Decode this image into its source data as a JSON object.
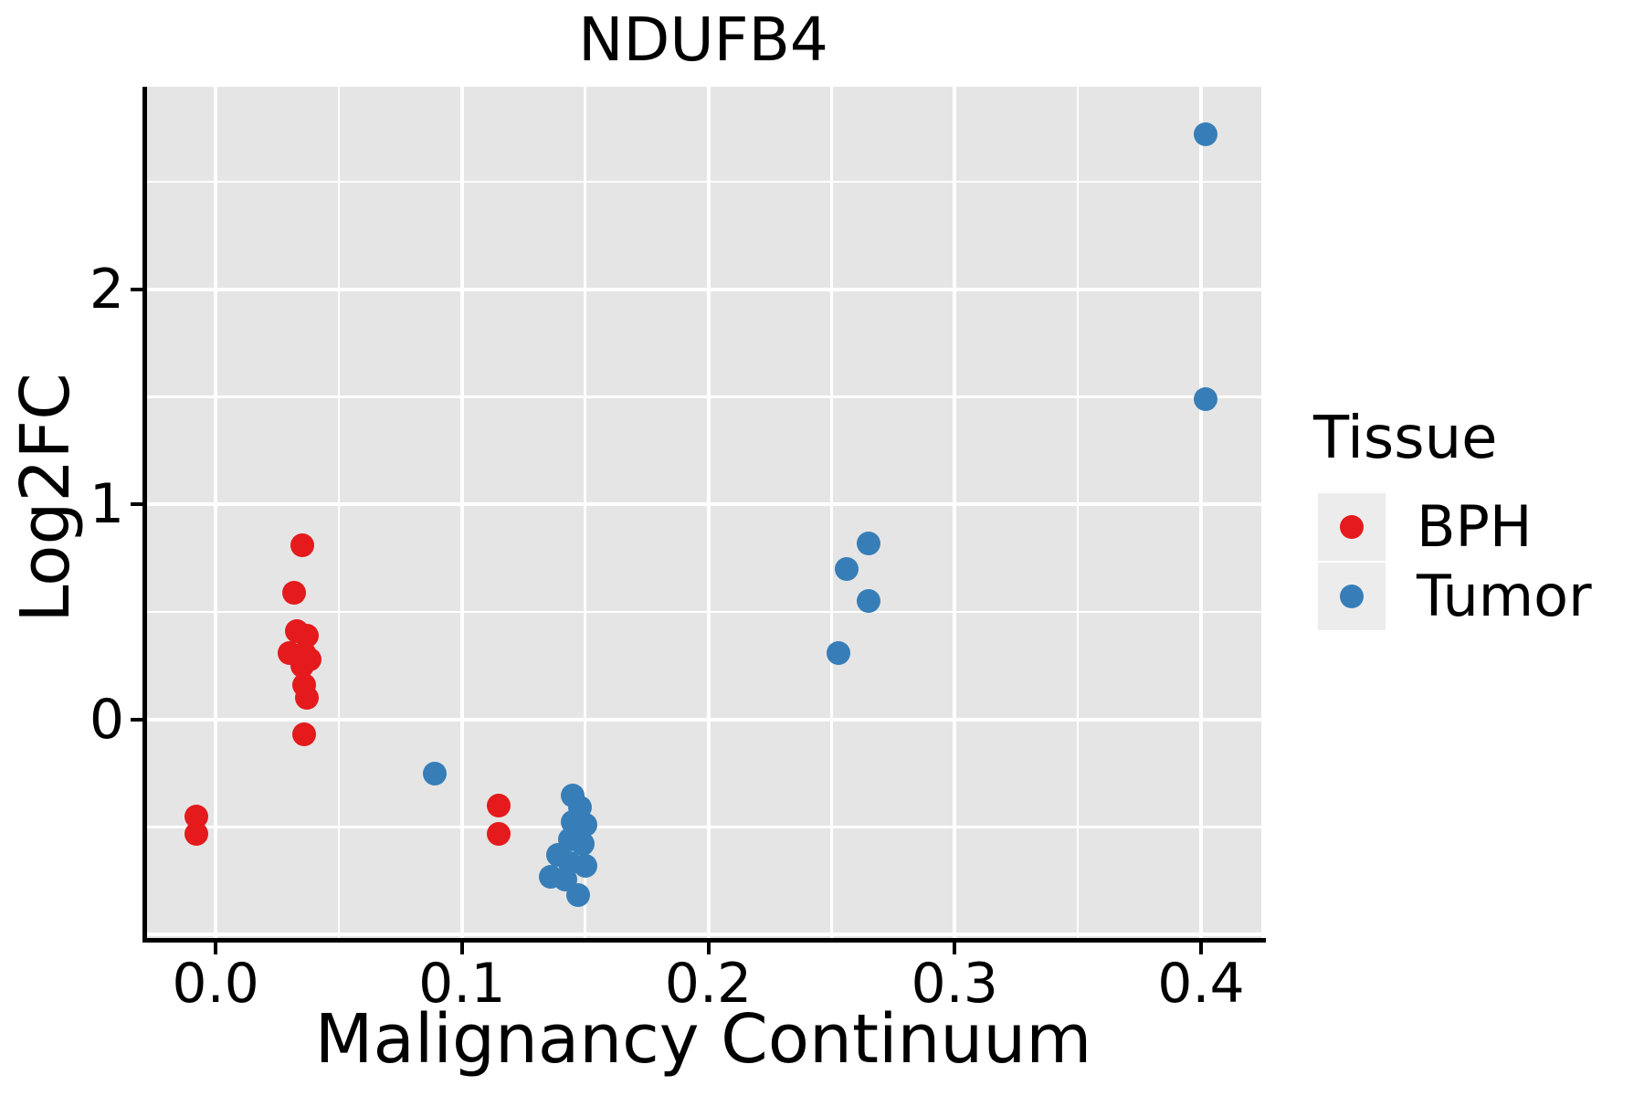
{
  "chart_data": {
    "type": "scatter",
    "title": "NDUFB4",
    "xlabel": "Malignancy Continuum",
    "ylabel": "Log2FC",
    "xlim": [
      -0.0286,
      0.4245
    ],
    "ylim": [
      -1.028,
      2.942
    ],
    "grid": true,
    "legend_position": "right-outside",
    "x_ticks": [
      {
        "value": 0.0,
        "label": "0.0"
      },
      {
        "value": 0.1,
        "label": "0.1"
      },
      {
        "value": 0.2,
        "label": "0.2"
      },
      {
        "value": 0.3,
        "label": "0.3"
      },
      {
        "value": 0.4,
        "label": "0.4"
      }
    ],
    "y_ticks": [
      {
        "value": 0,
        "label": "0"
      },
      {
        "value": 1,
        "label": "1"
      },
      {
        "value": 2,
        "label": "2"
      }
    ],
    "x_grid_major": [
      0.0,
      0.1,
      0.2,
      0.3,
      0.4
    ],
    "x_grid_minor": [
      0.05,
      0.15,
      0.25,
      0.35
    ],
    "y_grid_major": [
      -1,
      0,
      1,
      2
    ],
    "y_grid_minor": [
      -0.5,
      0.5,
      1.5,
      2.5
    ],
    "series": [
      {
        "name": "BPH",
        "color": "#E41A1C",
        "points": [
          [
            -0.008,
            -0.45
          ],
          [
            -0.008,
            -0.53
          ],
          [
            0.035,
            0.81
          ],
          [
            0.032,
            0.59
          ],
          [
            0.033,
            0.41
          ],
          [
            0.037,
            0.39
          ],
          [
            0.03,
            0.31
          ],
          [
            0.036,
            0.31
          ],
          [
            0.038,
            0.28
          ],
          [
            0.035,
            0.25
          ],
          [
            0.036,
            0.16
          ],
          [
            0.037,
            0.1
          ],
          [
            0.036,
            -0.07
          ],
          [
            0.115,
            -0.4
          ],
          [
            0.115,
            -0.53
          ]
        ]
      },
      {
        "name": "Tumor",
        "color": "#377EB8",
        "points": [
          [
            0.089,
            -0.25
          ],
          [
            0.145,
            -0.355
          ],
          [
            0.148,
            -0.41
          ],
          [
            0.145,
            -0.475
          ],
          [
            0.15,
            -0.49
          ],
          [
            0.144,
            -0.555
          ],
          [
            0.149,
            -0.58
          ],
          [
            0.139,
            -0.63
          ],
          [
            0.144,
            -0.665
          ],
          [
            0.15,
            -0.68
          ],
          [
            0.136,
            -0.73
          ],
          [
            0.142,
            -0.745
          ],
          [
            0.147,
            -0.815
          ],
          [
            0.256,
            0.7
          ],
          [
            0.265,
            0.82
          ],
          [
            0.265,
            0.55
          ],
          [
            0.253,
            0.31
          ],
          [
            0.402,
            2.72
          ],
          [
            0.402,
            1.49
          ]
        ]
      }
    ]
  },
  "legend": {
    "title": "Tissue",
    "items": [
      {
        "label": "BPH",
        "color": "#E41A1C"
      },
      {
        "label": "Tumor",
        "color": "#377EB8"
      }
    ]
  },
  "colors": {
    "panel_bg": "#E5E5E5",
    "grid": "#FFFFFF",
    "axis": "#000000",
    "legend_key_bg": "#ECECEC",
    "text": "#000000"
  }
}
